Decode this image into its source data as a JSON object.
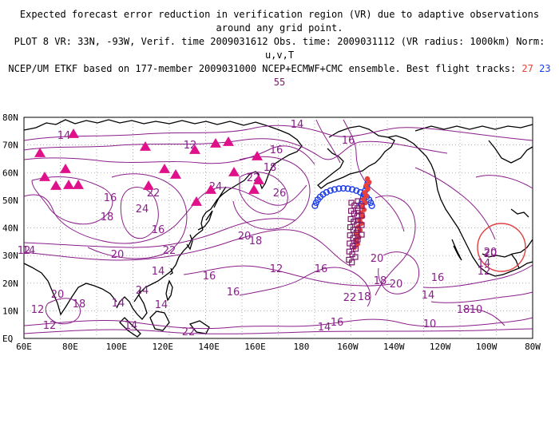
{
  "header": {
    "line1": "Expected forecast error reduction in verification region (VR) due to adaptive observations around any grid point.",
    "line2": "PLOT 8 VR: 33N, -93W, Verif. time 2009031612 Obs. time: 2009031112 (VR radius: 1000km) Norm: u,v,T",
    "line3_prefix": "NCEP/UM ETKF based on 177-member 2009031000 NCEP+ECMWF+CMC ensemble. Best flight tracks: ",
    "track_27": "27",
    "track_23": "23",
    "track_55": "55"
  },
  "axes": {
    "lon_ticks": [
      "60E",
      "80E",
      "100E",
      "120E",
      "140E",
      "160E",
      "180",
      "160W",
      "140W",
      "120W",
      "100W",
      "80W"
    ],
    "lat_ticks": [
      "80N",
      "70N",
      "60N",
      "50N",
      "40N",
      "30N",
      "20N",
      "10N",
      "EQ"
    ]
  },
  "contour_labels": [
    "14",
    "16",
    "12",
    "16",
    "14",
    "22",
    "24",
    "26",
    "18",
    "22",
    "16",
    "14",
    "18",
    "16",
    "24",
    "22",
    "20",
    "18",
    "20",
    "14",
    "12",
    "16",
    "20",
    "22",
    "24",
    "18",
    "14",
    "16",
    "12",
    "20",
    "14",
    "16",
    "18",
    "20",
    "16",
    "14",
    "12",
    "10",
    "18",
    "16",
    "12",
    "14",
    "22",
    "20",
    "12",
    "18",
    "10",
    "20",
    "14",
    "14"
  ],
  "colors": {
    "contour": "#8a1e8a",
    "track_27": "#e8403a",
    "track_23": "#1e3ee8",
    "track_55": "#7a1a6a",
    "stations": "#e0108a",
    "verification_circle": "#e04040"
  }
}
